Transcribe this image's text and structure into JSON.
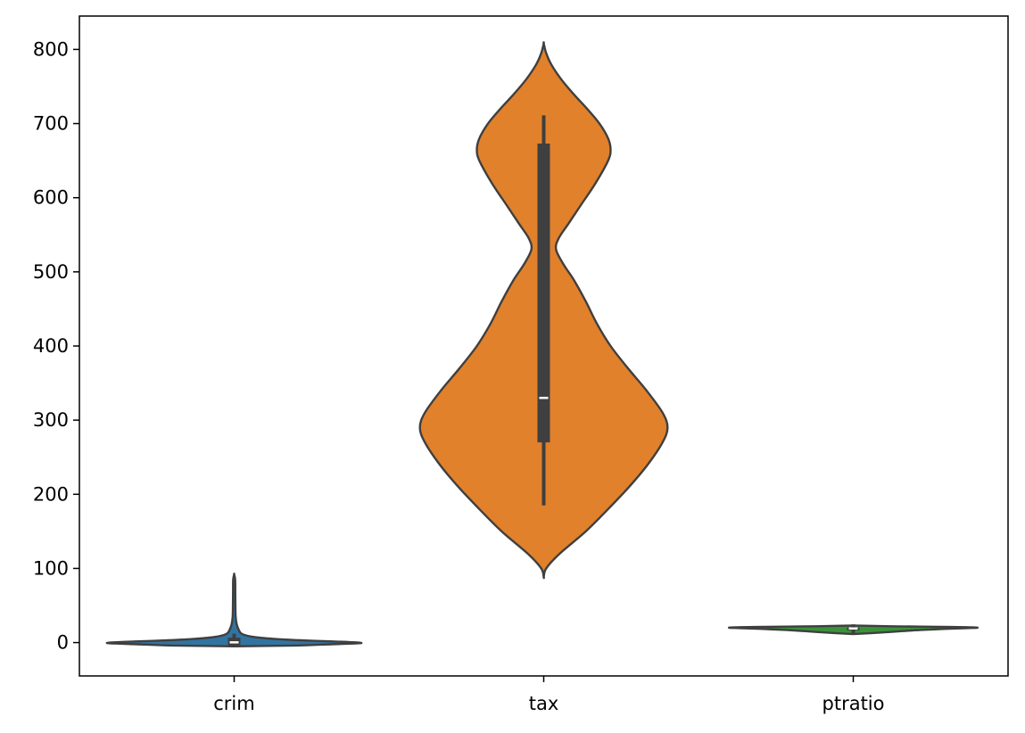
{
  "chart_data": {
    "type": "violin",
    "title": "",
    "xlabel": "",
    "ylabel": "",
    "ylim": [
      -45,
      845
    ],
    "yticks": [
      0,
      100,
      200,
      300,
      400,
      500,
      600,
      700,
      800
    ],
    "grid": false,
    "legend": "none",
    "categories": [
      "crim",
      "tax",
      "ptratio"
    ],
    "series": [
      {
        "category": "crim",
        "color": "#3274a1",
        "q1": -3.5,
        "median": 0.3,
        "q3": 6.5,
        "whisker_low": -4,
        "whisker_high": 12,
        "density": [
          [
            -5,
            0.01
          ],
          [
            -4,
            0.5
          ],
          [
            -2.5,
            0.75
          ],
          [
            -1,
            1.0
          ],
          [
            0,
            1.0
          ],
          [
            1.5,
            0.8
          ],
          [
            3,
            0.55
          ],
          [
            5,
            0.32
          ],
          [
            8,
            0.14
          ],
          [
            12,
            0.06
          ],
          [
            18,
            0.035
          ],
          [
            25,
            0.02
          ],
          [
            35,
            0.012
          ],
          [
            50,
            0.01
          ],
          [
            70,
            0.009
          ],
          [
            85,
            0.008
          ],
          [
            92,
            0.0
          ]
        ]
      },
      {
        "category": "tax",
        "color": "#e1812c",
        "q1": 270,
        "median": 330,
        "q3": 673,
        "whisker_low": 185,
        "whisker_high": 711,
        "density": [
          [
            88,
            0.0
          ],
          [
            100,
            0.02
          ],
          [
            120,
            0.13
          ],
          [
            150,
            0.34
          ],
          [
            180,
            0.52
          ],
          [
            210,
            0.69
          ],
          [
            240,
            0.84
          ],
          [
            270,
            0.96
          ],
          [
            290,
            1.0
          ],
          [
            310,
            0.96
          ],
          [
            340,
            0.83
          ],
          [
            370,
            0.68
          ],
          [
            400,
            0.54
          ],
          [
            430,
            0.43
          ],
          [
            460,
            0.34
          ],
          [
            490,
            0.24
          ],
          [
            510,
            0.16
          ],
          [
            530,
            0.1
          ],
          [
            545,
            0.12
          ],
          [
            565,
            0.2
          ],
          [
            590,
            0.3
          ],
          [
            620,
            0.42
          ],
          [
            650,
            0.52
          ],
          [
            665,
            0.54
          ],
          [
            680,
            0.52
          ],
          [
            700,
            0.45
          ],
          [
            720,
            0.35
          ],
          [
            740,
            0.24
          ],
          [
            760,
            0.14
          ],
          [
            780,
            0.06
          ],
          [
            795,
            0.02
          ],
          [
            808,
            0.0
          ]
        ]
      },
      {
        "category": "ptratio",
        "color": "#3a923a",
        "q1": 16.5,
        "median": 19.0,
        "q3": 20.5,
        "whisker_low": 12.6,
        "whisker_high": 22.0,
        "density": [
          [
            11.5,
            0.0
          ],
          [
            12.6,
            0.14
          ],
          [
            14,
            0.27
          ],
          [
            15.5,
            0.4
          ],
          [
            17,
            0.55
          ],
          [
            18.5,
            0.75
          ],
          [
            19.5,
            0.92
          ],
          [
            20.2,
            1.0
          ],
          [
            21,
            0.8
          ],
          [
            22,
            0.3
          ],
          [
            23,
            0.0
          ]
        ]
      }
    ]
  }
}
